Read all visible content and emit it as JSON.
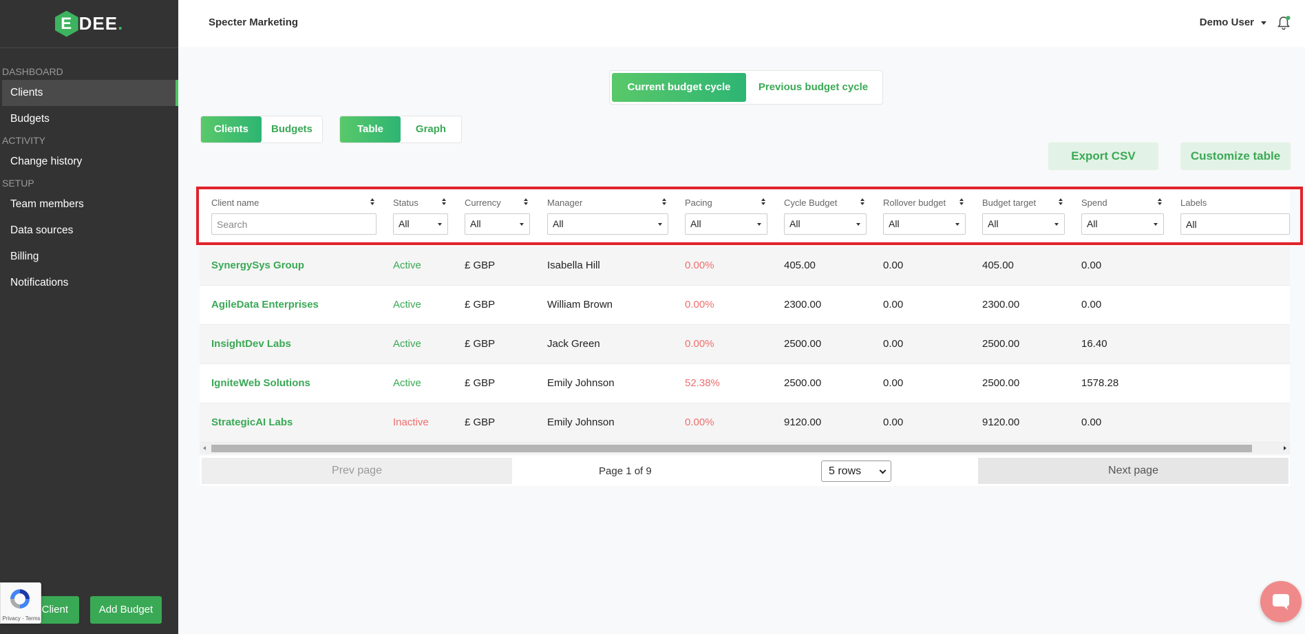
{
  "app": {
    "logo_text": "EDEE",
    "company": "Specter Marketing",
    "user": "Demo User"
  },
  "sidebar": {
    "sections": [
      {
        "label": "DASHBOARD",
        "items": [
          {
            "label": "Clients",
            "active": true
          },
          {
            "label": "Budgets"
          }
        ]
      },
      {
        "label": "ACTIVITY",
        "items": [
          {
            "label": "Change history"
          }
        ]
      },
      {
        "label": "SETUP",
        "items": [
          {
            "label": "Team members"
          },
          {
            "label": "Data sources"
          },
          {
            "label": "Billing"
          },
          {
            "label": "Notifications"
          }
        ]
      }
    ],
    "add_client_label": "Client",
    "add_budget_label": "Add Budget",
    "recaptcha_text": "Privacy - Terms"
  },
  "cycle_toggle": {
    "current": "Current budget cycle",
    "previous": "Previous budget cycle",
    "selected": "current"
  },
  "view_toggle": {
    "clients": "Clients",
    "budgets": "Budgets",
    "table": "Table",
    "graph": "Graph"
  },
  "actions": {
    "export_csv": "Export CSV",
    "customize_table": "Customize table"
  },
  "table": {
    "columns": [
      {
        "label": "Client name",
        "filter": "Search",
        "filter_type": "input"
      },
      {
        "label": "Status",
        "filter": "All"
      },
      {
        "label": "Currency",
        "filter": "All"
      },
      {
        "label": "Manager",
        "filter": "All"
      },
      {
        "label": "Pacing",
        "filter": "All"
      },
      {
        "label": "Cycle Budget",
        "filter": "All"
      },
      {
        "label": "Rollover budget",
        "filter": "All"
      },
      {
        "label": "Budget target",
        "filter": "All"
      },
      {
        "label": "Spend",
        "filter": "All"
      },
      {
        "label": "Labels",
        "filter": "All",
        "filter_type": "input"
      }
    ],
    "rows": [
      {
        "client": "SynergySys Group",
        "status": "Active",
        "currency": "£ GBP",
        "manager": "Isabella Hill",
        "pacing": "0.00%",
        "cycle_budget": "405.00",
        "rollover": "0.00",
        "target": "405.00",
        "spend": "0.00"
      },
      {
        "client": "AgileData Enterprises",
        "status": "Active",
        "currency": "£ GBP",
        "manager": "William Brown",
        "pacing": "0.00%",
        "cycle_budget": "2300.00",
        "rollover": "0.00",
        "target": "2300.00",
        "spend": "0.00"
      },
      {
        "client": "InsightDev Labs",
        "status": "Active",
        "currency": "£ GBP",
        "manager": "Jack Green",
        "pacing": "0.00%",
        "cycle_budget": "2500.00",
        "rollover": "0.00",
        "target": "2500.00",
        "spend": "16.40"
      },
      {
        "client": "IgniteWeb Solutions",
        "status": "Active",
        "currency": "£ GBP",
        "manager": "Emily Johnson",
        "pacing": "52.38%",
        "cycle_budget": "2500.00",
        "rollover": "0.00",
        "target": "2500.00",
        "spend": "1578.28"
      },
      {
        "client": "StrategicAI Labs",
        "status": "Inactive",
        "currency": "£ GBP",
        "manager": "Emily Johnson",
        "pacing": "0.00%",
        "cycle_budget": "9120.00",
        "rollover": "0.00",
        "target": "9120.00",
        "spend": "0.00"
      }
    ]
  },
  "pagination": {
    "prev": "Prev page",
    "info": "Page 1 of 9",
    "rows_select": "5 rows",
    "next": "Next page"
  },
  "colors": {
    "brand_green": "#3aa955",
    "sidebar_bg": "#333333",
    "warning_red": "#ef6d6d",
    "highlight_border": "#e0232b"
  }
}
